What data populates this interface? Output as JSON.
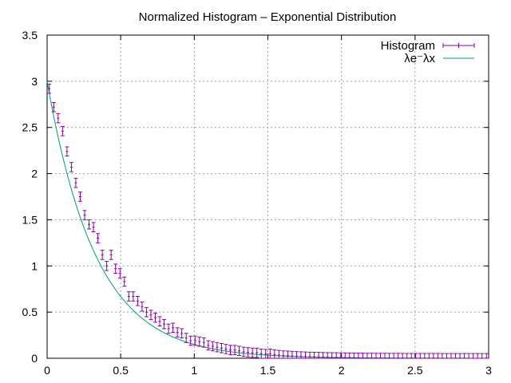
{
  "chart_data": {
    "type": "scatter",
    "title": "Normalized Histogram – Exponential Distribution",
    "xlabel": "",
    "ylabel": "",
    "xlim": [
      0,
      3
    ],
    "ylim": [
      0,
      3.5
    ],
    "xticks": [
      0,
      0.5,
      1,
      1.5,
      2,
      2.5,
      3
    ],
    "xtick_labels": [
      "0",
      "0.5",
      "1",
      "1.5",
      "2",
      "2.5",
      "3"
    ],
    "yticks": [
      0,
      0.5,
      1,
      1.5,
      2,
      2.5,
      3,
      3.5
    ],
    "ytick_labels": [
      "0",
      "0.5",
      "1",
      "1.5",
      "2",
      "2.5",
      "3",
      "3.5"
    ],
    "grid": true,
    "legend_position": "top-right",
    "series": [
      {
        "name": "Histogram",
        "style": "points with error bars",
        "color": "#8b00a8",
        "x": [
          0.015,
          0.045,
          0.075,
          0.105,
          0.135,
          0.165,
          0.195,
          0.225,
          0.255,
          0.285,
          0.315,
          0.345,
          0.375,
          0.405,
          0.435,
          0.465,
          0.495,
          0.525,
          0.555,
          0.585,
          0.615,
          0.645,
          0.675,
          0.705,
          0.735,
          0.765,
          0.795,
          0.825,
          0.855,
          0.885,
          0.915,
          0.945,
          0.975,
          1.005,
          1.035,
          1.065,
          1.095,
          1.125,
          1.155,
          1.185,
          1.215,
          1.245,
          1.275,
          1.305,
          1.335,
          1.365,
          1.395,
          1.425,
          1.455,
          1.485,
          1.515,
          1.545,
          1.575,
          1.605,
          1.635,
          1.665,
          1.695,
          1.725,
          1.755,
          1.785,
          1.815,
          1.845,
          1.875,
          1.905,
          1.935,
          1.965,
          1.995,
          2.025,
          2.055,
          2.085,
          2.115,
          2.145,
          2.175,
          2.205,
          2.235,
          2.265,
          2.295,
          2.325,
          2.355,
          2.385,
          2.415,
          2.445,
          2.475,
          2.505,
          2.535,
          2.565,
          2.595,
          2.625,
          2.655,
          2.685,
          2.715,
          2.745,
          2.775,
          2.805,
          2.835,
          2.865,
          2.895,
          2.925,
          2.955,
          2.985
        ],
        "y": [
          2.92,
          2.72,
          2.6,
          2.46,
          2.24,
          2.07,
          1.9,
          1.75,
          1.55,
          1.45,
          1.42,
          1.3,
          1.12,
          1.0,
          1.12,
          0.97,
          0.92,
          0.83,
          0.67,
          0.67,
          0.62,
          0.56,
          0.5,
          0.47,
          0.44,
          0.4,
          0.37,
          0.32,
          0.33,
          0.28,
          0.27,
          0.22,
          0.19,
          0.19,
          0.18,
          0.17,
          0.14,
          0.13,
          0.12,
          0.11,
          0.1,
          0.09,
          0.09,
          0.08,
          0.07,
          0.065,
          0.06,
          0.06,
          0.05,
          0.045,
          0.05,
          0.04,
          0.035,
          0.03,
          0.028,
          0.025,
          0.022,
          0.02,
          0.018,
          0.016,
          0.015,
          0.014,
          0.012,
          0.011,
          0.01,
          0.01,
          0.009,
          0.008,
          0.008,
          0.007,
          0.006,
          0.006,
          0.005,
          0.005,
          0.004,
          0.004,
          0.004,
          0.003,
          0.003,
          0.003,
          0.003,
          0.002,
          0.002,
          0.002,
          0.002,
          0.002,
          0.002,
          0.002,
          0.002,
          0.001,
          0.001,
          0.001,
          0.001,
          0.001,
          0.001,
          0.001,
          0.001,
          0.001,
          0.001,
          0.001
        ],
        "y_error": 0.05
      },
      {
        "name": "λe⁻λx",
        "style": "line",
        "color": "#009e73",
        "function": "3*exp(-3*x)",
        "lambda": 3
      }
    ]
  }
}
